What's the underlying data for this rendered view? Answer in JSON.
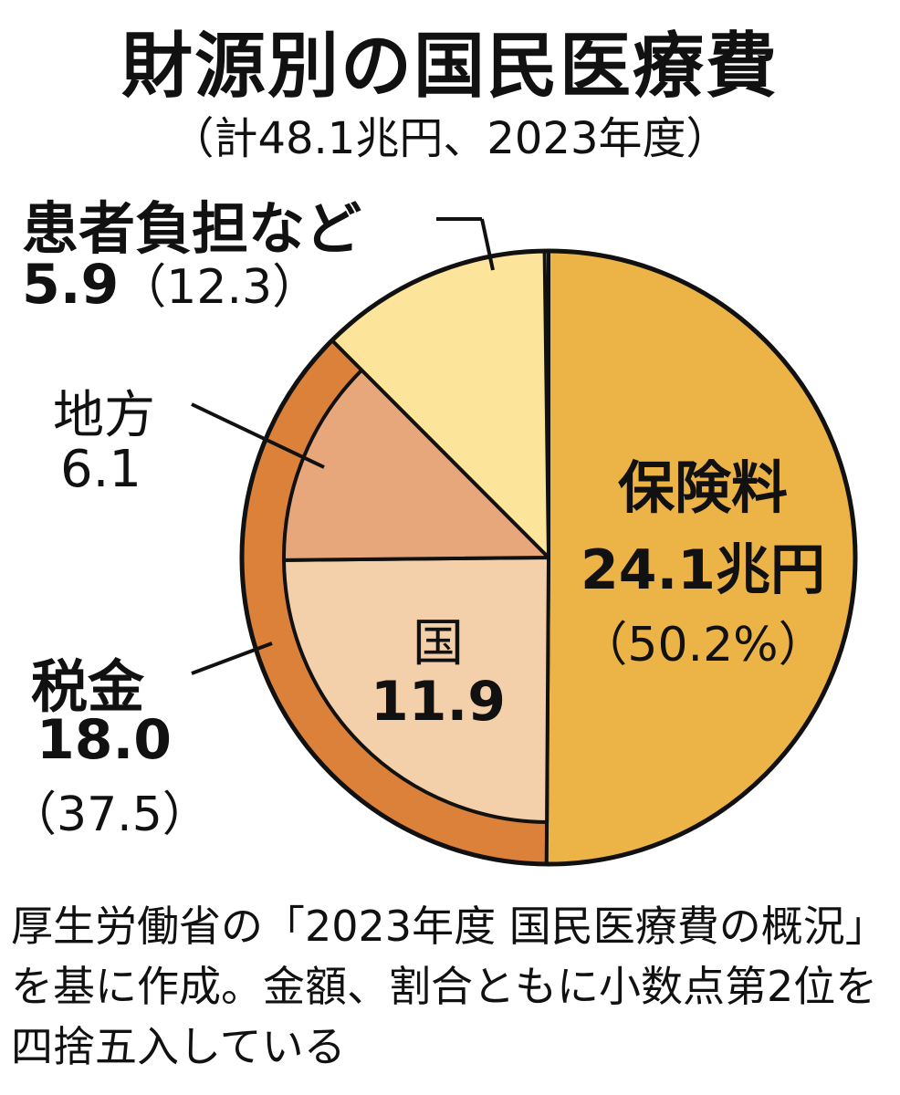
{
  "title": "財源別の国民医療費",
  "subtitle": "（計48.1兆円、2023年度）",
  "chart_data": {
    "type": "pie",
    "unit": "兆円",
    "total": 48.1,
    "slices": [
      {
        "key": "hoken",
        "label": "保険料",
        "value": 24.1,
        "value_text": "24.1兆円",
        "pct_text": "（50.2%）",
        "color": "#ecb447"
      },
      {
        "key": "kuni",
        "label": "国",
        "value": 11.9,
        "value_text": "11.9",
        "group": "zeikin",
        "color": "#f4d0aa"
      },
      {
        "key": "chiho",
        "label": "地方",
        "value": 6.1,
        "value_text": "6.1",
        "group": "zeikin",
        "color": "#e7a77b"
      },
      {
        "key": "kanja",
        "label": "患者負担など",
        "value": 5.9,
        "value_text": "5.9",
        "pct_text": "（12.3）",
        "color": "#fde49b"
      }
    ],
    "groups": [
      {
        "key": "zeikin",
        "label": "税金",
        "value": 18.0,
        "value_text": "18.0",
        "pct_text": "（37.5）",
        "color": "#db813a"
      }
    ]
  },
  "note": "厚生労働省の「2023年度 国民医療費の概況」を基に作成。金額、割合ともに小数点第2位を四捨五入している"
}
